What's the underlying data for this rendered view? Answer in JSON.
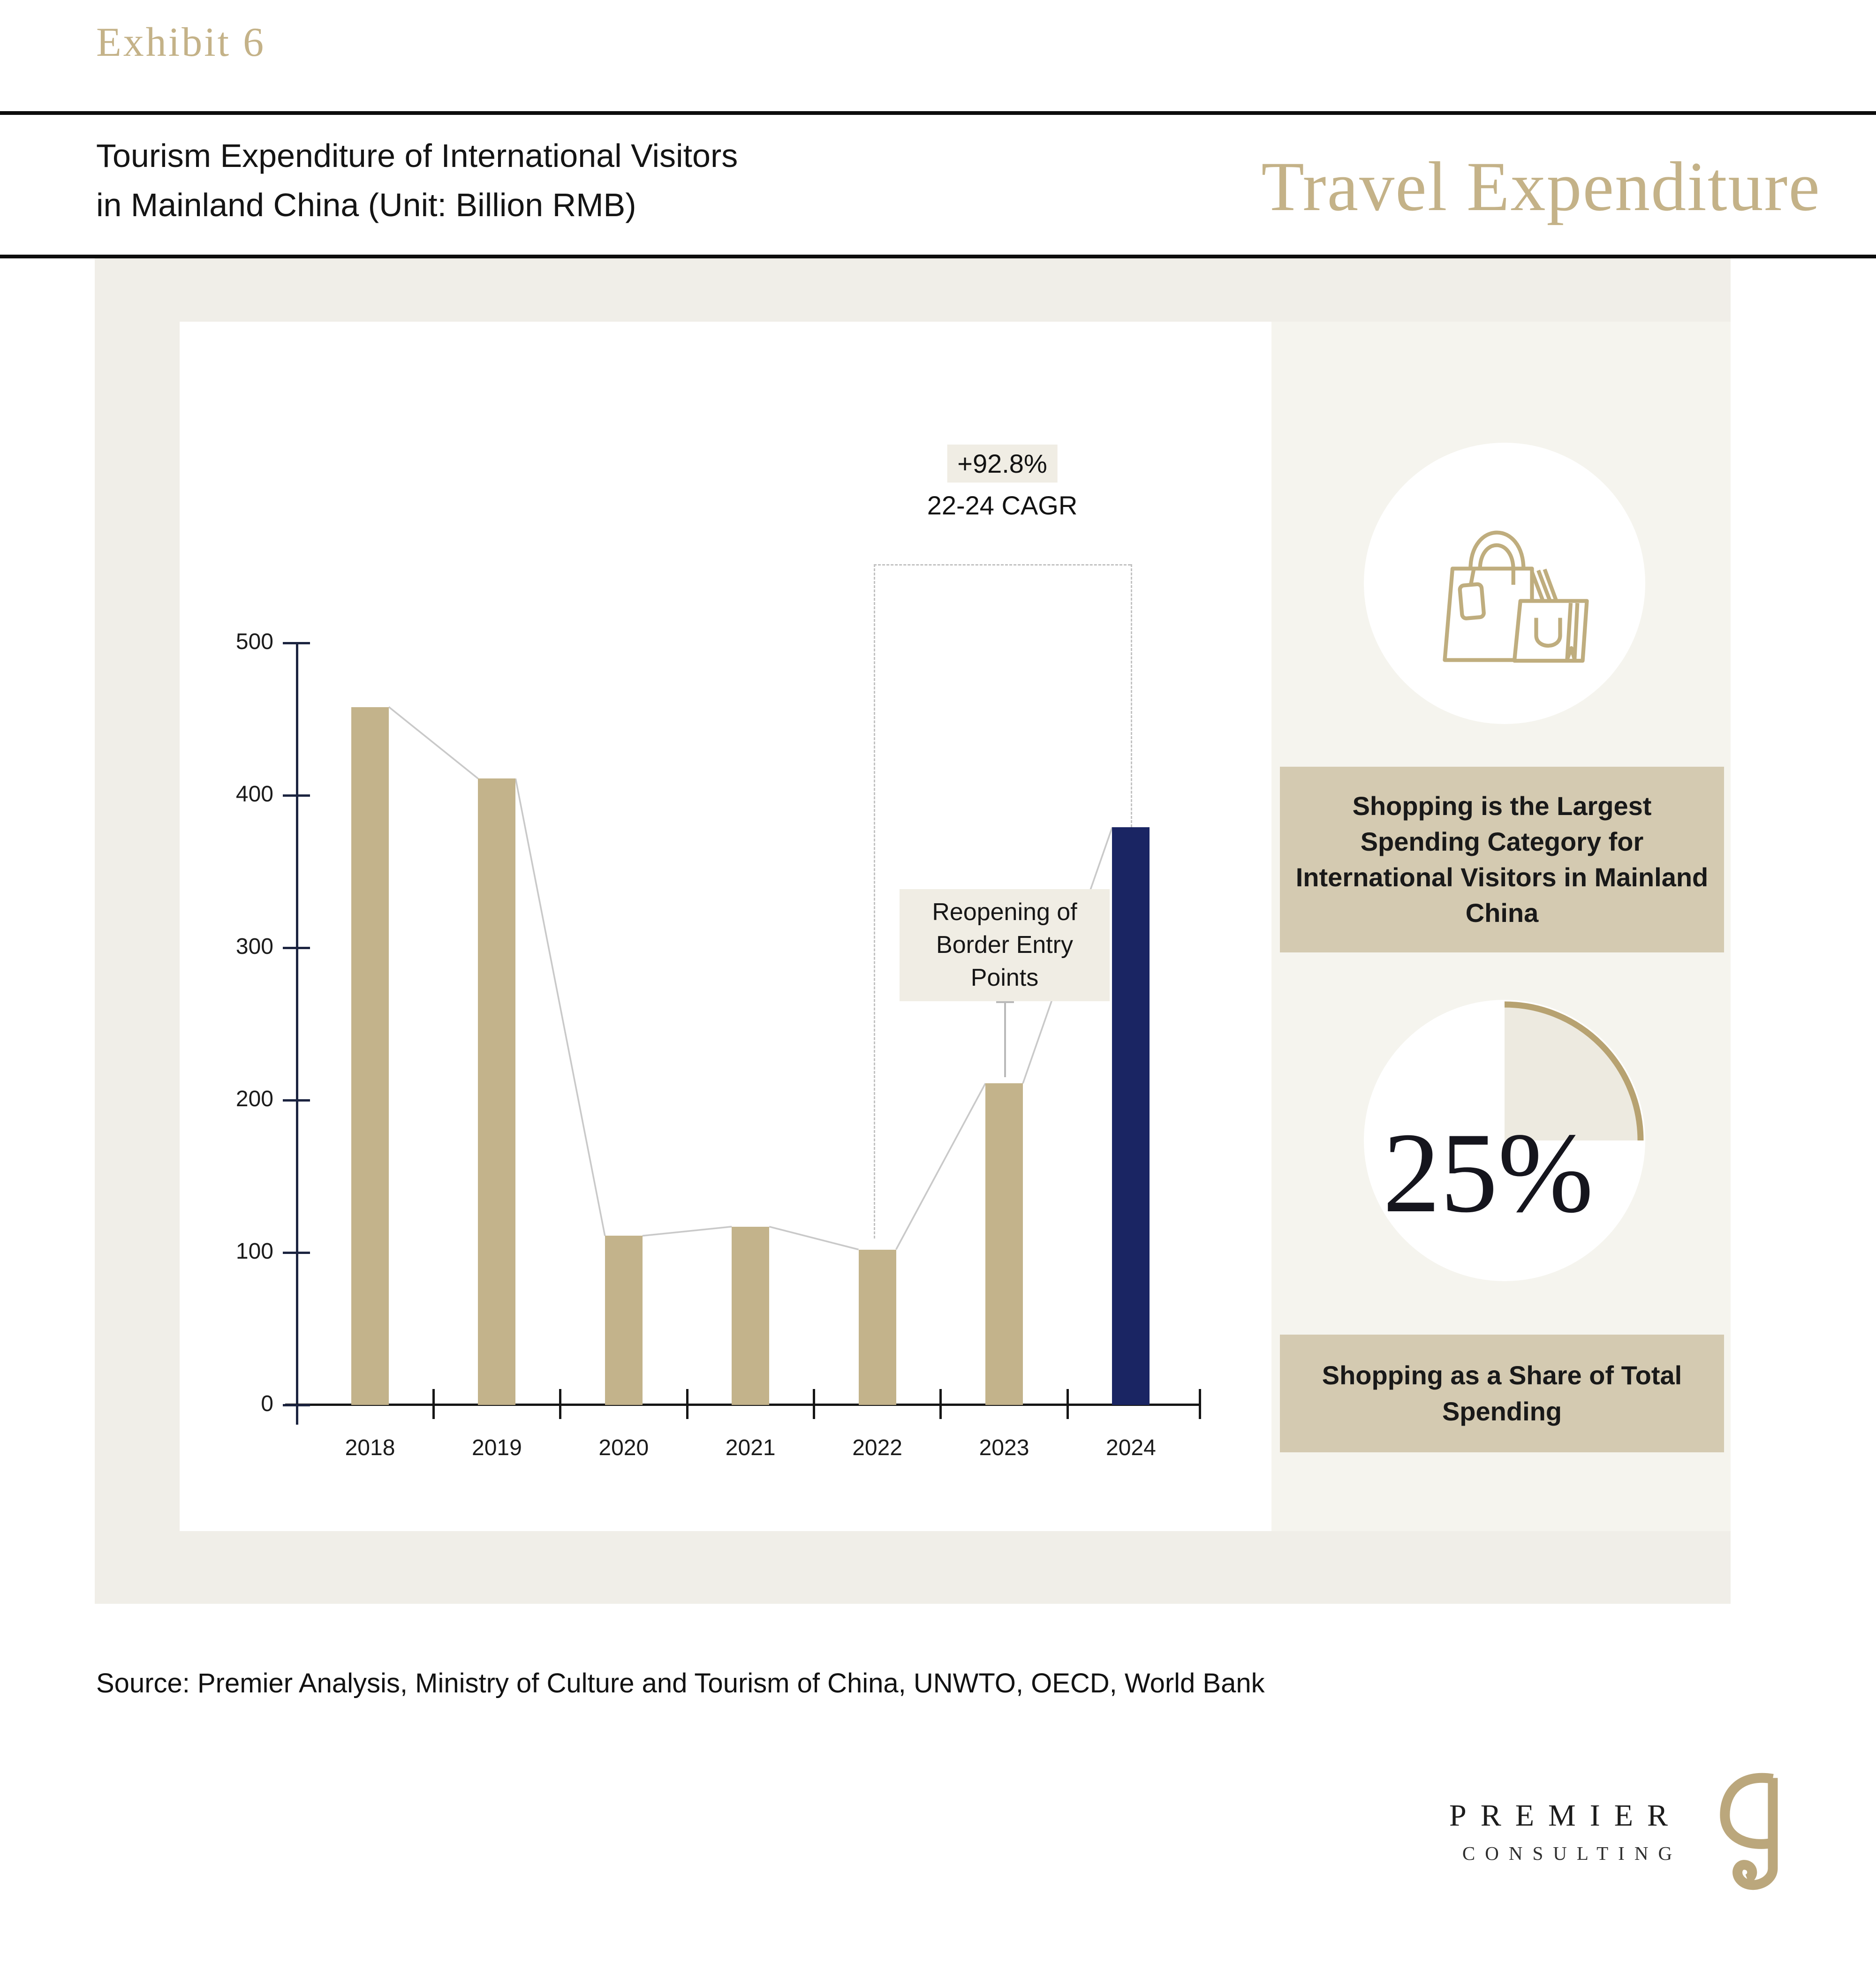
{
  "exhibit_label": "Exhibit 6",
  "header": {
    "title_line1": "Tourism Expenditure of International Visitors",
    "title_line2": "in Mainland China (Unit: Billion RMB)",
    "category_label": "Travel Expenditure"
  },
  "chart_data": {
    "type": "bar",
    "title": "Tourism Expenditure of International Visitors in Mainland China",
    "unit": "Billion RMB",
    "categories": [
      "2018",
      "2019",
      "2020",
      "2021",
      "2022",
      "2023",
      "2024"
    ],
    "values": [
      458,
      411,
      111,
      117,
      102,
      211,
      379
    ],
    "ylim": [
      0,
      500
    ],
    "yticks": [
      0,
      100,
      200,
      300,
      400,
      500
    ],
    "grid": false,
    "trend_line": true,
    "annotations": {
      "cagr_value": "+92.8%",
      "cagr_label": "22-24 CAGR",
      "cagr_span": [
        "2022",
        "2024"
      ],
      "event_label": "Reopening of Border Entry Points",
      "event_category": "2023"
    }
  },
  "sidebar": {
    "icon": "shopping-bags-icon",
    "card1_text": "Shopping is the Largest Spending Category for International Visitors in Mainland China",
    "stat_value": "25%",
    "card2_text": "Shopping as a Share of Total Spending"
  },
  "source_line": "Source: Premier Analysis, Ministry of Culture and Tourism of China, UNWTO, OECD, World Bank",
  "logo": {
    "name_top": "PREMIER",
    "name_bottom": "CONSULTING"
  },
  "colors": {
    "bar_tan": "#c3b38b",
    "bar_navy": "#1a2563",
    "brand_gold": "#c4b288",
    "box_tan": "#d4cab1",
    "highlight_beige": "#f0ede4",
    "icon_gold": "#bfad7e",
    "arc_gold": "#b7a271"
  }
}
